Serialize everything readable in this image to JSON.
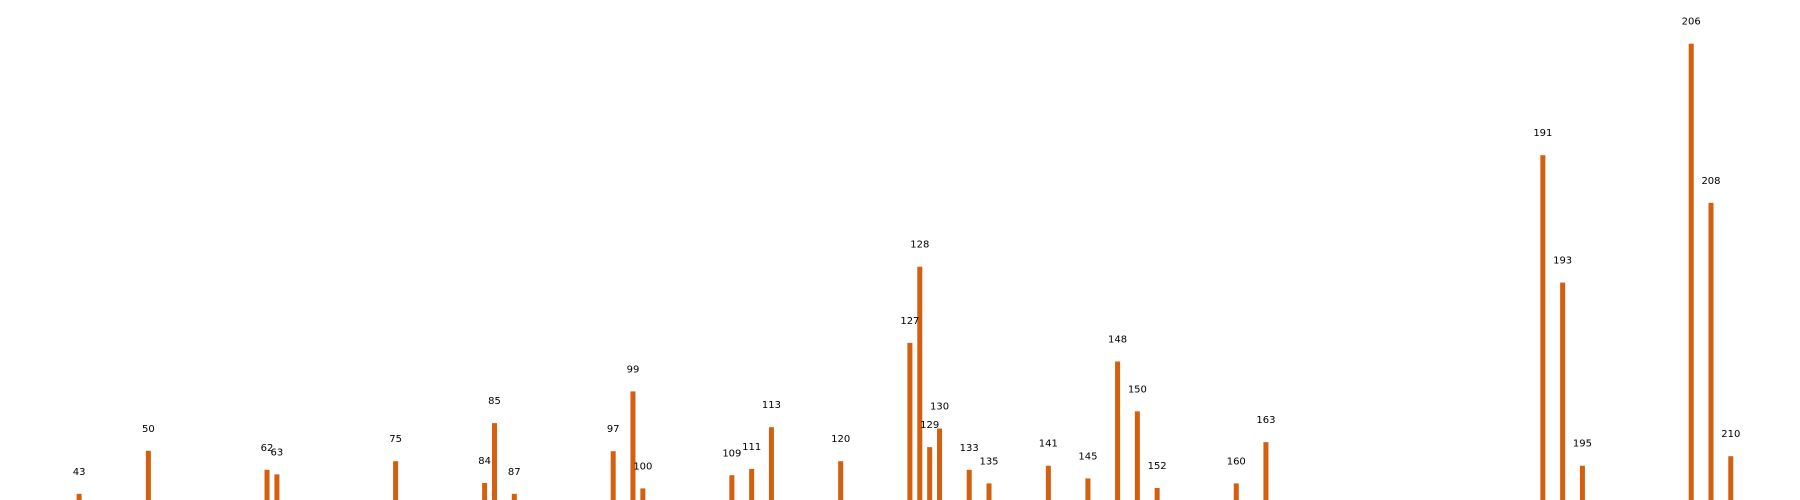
{
  "chart_data": {
    "type": "bar",
    "title": "",
    "xlabel": "",
    "ylabel": "",
    "grid": false,
    "legend": "none",
    "bar_color": "#d35f0f",
    "xlim": [
      35,
      217
    ],
    "ylim": [
      0,
      1.05
    ],
    "x": [
      43,
      50,
      62,
      63,
      75,
      84,
      85,
      87,
      97,
      99,
      100,
      109,
      111,
      113,
      120,
      127,
      128,
      129,
      130,
      133,
      135,
      141,
      145,
      148,
      150,
      152,
      160,
      163,
      191,
      193,
      195,
      206,
      208,
      210
    ],
    "labels": [
      "43",
      "50",
      "62",
      "63",
      "75",
      "84",
      "85",
      "87",
      "97",
      "99",
      "100",
      "109",
      "111",
      "113",
      "120",
      "127",
      "128",
      "129",
      "130",
      "133",
      "135",
      "141",
      "145",
      "148",
      "150",
      "152",
      "160",
      "163",
      "191",
      "193",
      "195",
      "206",
      "208",
      "210"
    ],
    "values": [
      0.018,
      0.113,
      0.071,
      0.061,
      0.09,
      0.042,
      0.174,
      0.018,
      0.112,
      0.244,
      0.03,
      0.059,
      0.073,
      0.165,
      0.09,
      0.351,
      0.519,
      0.121,
      0.162,
      0.071,
      0.041,
      0.08,
      0.052,
      0.31,
      0.2,
      0.031,
      0.041,
      0.132,
      0.765,
      0.484,
      0.08,
      1.011,
      0.66,
      0.101
    ]
  }
}
